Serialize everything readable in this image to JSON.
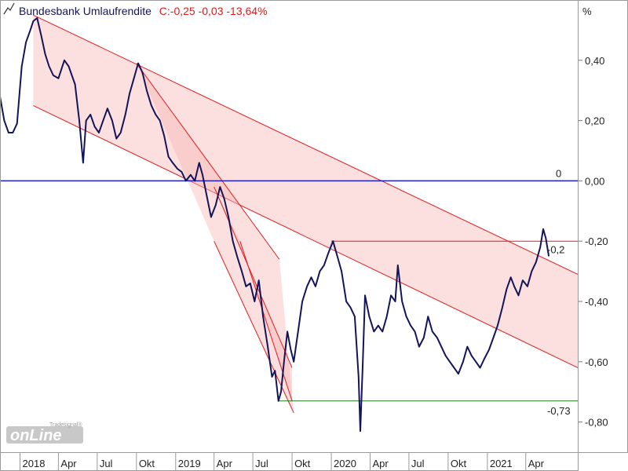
{
  "header": {
    "instrument": "Bundesbank Umlaufrendite",
    "quote": "C:-0,25 -0,03 -13,64%"
  },
  "logo": {
    "text": "onLine",
    "sub": "Tradesignal®"
  },
  "colors": {
    "price": "#14145a",
    "channel": "#e31b1b",
    "channel_fill": "#f9b9b9",
    "zero_line": "#1c1cc8",
    "support": "#1a7a1a",
    "label_neg": "#e31b1b",
    "label_zero": "#1c1cc8",
    "label_support": "#1a7a1a"
  },
  "chart_data": {
    "type": "line",
    "title": "Bundesbank Umlaufrendite",
    "ylabel": "%",
    "ylim": [
      -0.9,
      0.6
    ],
    "y_ticks": [
      0.4,
      0.2,
      0.0,
      -0.2,
      -0.4,
      -0.6,
      -0.8
    ],
    "y_tick_labels": [
      "0,40",
      "0,20",
      "0,00",
      "-0,20",
      "-0,40",
      "-0,60",
      "-0,80"
    ],
    "x_ticks": [
      "2018-01-01",
      "2018-04-01",
      "2018-07-01",
      "2018-10-01",
      "2019-01-01",
      "2019-04-01",
      "2019-07-01",
      "2019-10-01",
      "2020-01-01",
      "2020-04-01",
      "2020-07-01",
      "2020-10-01",
      "2021-01-01",
      "2021-04-01"
    ],
    "x_tick_labels": [
      "2018",
      "Apr",
      "Jul",
      "Okt",
      "2019",
      "Apr",
      "Jul",
      "Okt",
      "2020",
      "Apr",
      "Jul",
      "Okt",
      "2021",
      "Apr"
    ],
    "x_range": [
      "2017-11-15",
      "2021-08-01"
    ],
    "series": [
      {
        "name": "Bundesbank Umlaufrendite",
        "points": [
          [
            "2017-11-15",
            0.28
          ],
          [
            "2017-11-25",
            0.2
          ],
          [
            "2017-12-05",
            0.16
          ],
          [
            "2017-12-15",
            0.16
          ],
          [
            "2017-12-25",
            0.19
          ],
          [
            "2018-01-05",
            0.38
          ],
          [
            "2018-01-15",
            0.46
          ],
          [
            "2018-01-25",
            0.5
          ],
          [
            "2018-02-01",
            0.53
          ],
          [
            "2018-02-10",
            0.54
          ],
          [
            "2018-02-20",
            0.48
          ],
          [
            "2018-03-01",
            0.42
          ],
          [
            "2018-03-10",
            0.38
          ],
          [
            "2018-03-20",
            0.35
          ],
          [
            "2018-04-01",
            0.34
          ],
          [
            "2018-04-15",
            0.4
          ],
          [
            "2018-04-25",
            0.38
          ],
          [
            "2018-05-10",
            0.32
          ],
          [
            "2018-05-20",
            0.2
          ],
          [
            "2018-05-29",
            0.06
          ],
          [
            "2018-06-05",
            0.2
          ],
          [
            "2018-06-15",
            0.22
          ],
          [
            "2018-06-25",
            0.18
          ],
          [
            "2018-07-05",
            0.16
          ],
          [
            "2018-07-15",
            0.2
          ],
          [
            "2018-07-25",
            0.24
          ],
          [
            "2018-08-05",
            0.2
          ],
          [
            "2018-08-15",
            0.14
          ],
          [
            "2018-08-25",
            0.16
          ],
          [
            "2018-09-05",
            0.22
          ],
          [
            "2018-09-15",
            0.29
          ],
          [
            "2018-09-25",
            0.34
          ],
          [
            "2018-10-05",
            0.39
          ],
          [
            "2018-10-15",
            0.36
          ],
          [
            "2018-10-25",
            0.3
          ],
          [
            "2018-11-05",
            0.25
          ],
          [
            "2018-11-15",
            0.22
          ],
          [
            "2018-11-25",
            0.2
          ],
          [
            "2018-12-05",
            0.15
          ],
          [
            "2018-12-15",
            0.08
          ],
          [
            "2018-12-25",
            0.06
          ],
          [
            "2019-01-05",
            0.04
          ],
          [
            "2019-01-15",
            0.03
          ],
          [
            "2019-01-25",
            0.0
          ],
          [
            "2019-02-05",
            0.02
          ],
          [
            "2019-02-15",
            0.0
          ],
          [
            "2019-02-25",
            0.06
          ],
          [
            "2019-03-05",
            0.02
          ],
          [
            "2019-03-15",
            -0.05
          ],
          [
            "2019-03-25",
            -0.12
          ],
          [
            "2019-04-05",
            -0.08
          ],
          [
            "2019-04-15",
            -0.02
          ],
          [
            "2019-04-25",
            -0.06
          ],
          [
            "2019-05-05",
            -0.12
          ],
          [
            "2019-05-15",
            -0.2
          ],
          [
            "2019-05-25",
            -0.25
          ],
          [
            "2019-06-05",
            -0.3
          ],
          [
            "2019-06-15",
            -0.35
          ],
          [
            "2019-06-25",
            -0.34
          ],
          [
            "2019-07-05",
            -0.4
          ],
          [
            "2019-07-15",
            -0.33
          ],
          [
            "2019-07-25",
            -0.45
          ],
          [
            "2019-08-05",
            -0.55
          ],
          [
            "2019-08-15",
            -0.65
          ],
          [
            "2019-08-22",
            -0.63
          ],
          [
            "2019-08-30",
            -0.73
          ],
          [
            "2019-09-05",
            -0.7
          ],
          [
            "2019-09-12",
            -0.6
          ],
          [
            "2019-09-20",
            -0.5
          ],
          [
            "2019-09-28",
            -0.56
          ],
          [
            "2019-10-05",
            -0.6
          ],
          [
            "2019-10-15",
            -0.5
          ],
          [
            "2019-10-25",
            -0.4
          ],
          [
            "2019-11-05",
            -0.35
          ],
          [
            "2019-11-15",
            -0.32
          ],
          [
            "2019-11-25",
            -0.35
          ],
          [
            "2019-12-05",
            -0.3
          ],
          [
            "2019-12-15",
            -0.28
          ],
          [
            "2019-12-25",
            -0.24
          ],
          [
            "2020-01-05",
            -0.2
          ],
          [
            "2020-01-15",
            -0.25
          ],
          [
            "2020-01-25",
            -0.3
          ],
          [
            "2020-02-05",
            -0.4
          ],
          [
            "2020-02-15",
            -0.42
          ],
          [
            "2020-02-25",
            -0.45
          ],
          [
            "2020-03-05",
            -0.65
          ],
          [
            "2020-03-09",
            -0.83
          ],
          [
            "2020-03-15",
            -0.6
          ],
          [
            "2020-03-20",
            -0.38
          ],
          [
            "2020-03-30",
            -0.45
          ],
          [
            "2020-04-10",
            -0.5
          ],
          [
            "2020-04-20",
            -0.48
          ],
          [
            "2020-04-30",
            -0.5
          ],
          [
            "2020-05-10",
            -0.45
          ],
          [
            "2020-05-20",
            -0.38
          ],
          [
            "2020-05-30",
            -0.4
          ],
          [
            "2020-06-05",
            -0.28
          ],
          [
            "2020-06-15",
            -0.4
          ],
          [
            "2020-06-25",
            -0.45
          ],
          [
            "2020-07-05",
            -0.48
          ],
          [
            "2020-07-15",
            -0.5
          ],
          [
            "2020-07-25",
            -0.55
          ],
          [
            "2020-08-05",
            -0.52
          ],
          [
            "2020-08-15",
            -0.45
          ],
          [
            "2020-08-25",
            -0.5
          ],
          [
            "2020-09-05",
            -0.52
          ],
          [
            "2020-09-15",
            -0.55
          ],
          [
            "2020-09-25",
            -0.58
          ],
          [
            "2020-10-05",
            -0.6
          ],
          [
            "2020-10-15",
            -0.62
          ],
          [
            "2020-10-25",
            -0.64
          ],
          [
            "2020-11-05",
            -0.6
          ],
          [
            "2020-11-15",
            -0.55
          ],
          [
            "2020-11-25",
            -0.58
          ],
          [
            "2020-12-05",
            -0.6
          ],
          [
            "2020-12-15",
            -0.62
          ],
          [
            "2020-12-25",
            -0.59
          ],
          [
            "2021-01-05",
            -0.56
          ],
          [
            "2021-01-15",
            -0.52
          ],
          [
            "2021-01-25",
            -0.48
          ],
          [
            "2021-02-05",
            -0.42
          ],
          [
            "2021-02-15",
            -0.36
          ],
          [
            "2021-02-25",
            -0.32
          ],
          [
            "2021-03-05",
            -0.35
          ],
          [
            "2021-03-15",
            -0.38
          ],
          [
            "2021-03-25",
            -0.33
          ],
          [
            "2021-04-05",
            -0.35
          ],
          [
            "2021-04-15",
            -0.3
          ],
          [
            "2021-04-25",
            -0.27
          ],
          [
            "2021-05-05",
            -0.22
          ],
          [
            "2021-05-12",
            -0.16
          ],
          [
            "2021-05-18",
            -0.19
          ],
          [
            "2021-05-25",
            -0.25
          ]
        ]
      }
    ],
    "annotations": {
      "zero_line": {
        "value": 0.0,
        "label": "0"
      },
      "resistance_line": {
        "value": -0.2,
        "from": "2020-01-01",
        "label": "-0,2"
      },
      "support_line": {
        "value": -0.73,
        "from": "2019-08-30",
        "label": "-0,73"
      },
      "channels": [
        {
          "upper": [
            [
              "2018-02-01",
              0.55
            ],
            [
              "2021-08-01",
              -0.31
            ]
          ],
          "lower": [
            [
              "2018-02-01",
              0.25
            ],
            [
              "2021-08-01",
              -0.62
            ]
          ]
        },
        {
          "upper": [
            [
              "2018-10-01",
              0.39
            ],
            [
              "2019-09-01",
              -0.26
            ]
          ],
          "lower": [
            [
              "2019-04-01",
              -0.2
            ],
            [
              "2019-10-05",
              -0.77
            ]
          ]
        },
        {
          "upper": [
            [
              "2019-04-01",
              -0.02
            ],
            [
              "2019-10-01",
              -0.62
            ]
          ],
          "lower": [
            [
              "2019-06-01",
              -0.2
            ],
            [
              "2019-10-01",
              -0.73
            ]
          ]
        }
      ]
    },
    "grid": false,
    "legend": "none"
  }
}
